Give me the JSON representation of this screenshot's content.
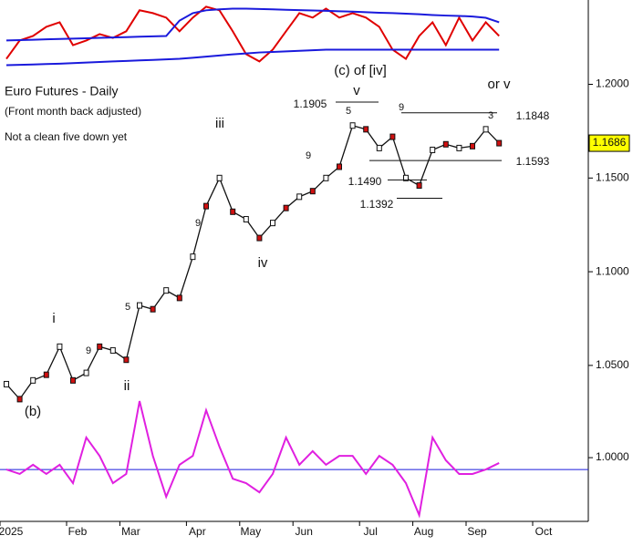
{
  "chart_data": [
    {
      "type": "line",
      "title": "Euro Futures - Daily",
      "subtitle": "(Front month back adjusted)",
      "categories": [
        "2025",
        null,
        null,
        null,
        null,
        "Feb",
        null,
        null,
        null,
        "Mar",
        null,
        null,
        null,
        null,
        "Apr",
        null,
        null,
        null,
        "May",
        null,
        null,
        null,
        "Jun",
        null,
        null,
        null,
        null,
        "Jul",
        null,
        null,
        null,
        "Aug",
        null,
        null,
        null,
        "Sep",
        null,
        null,
        null,
        null,
        "Oct",
        null,
        null,
        null
      ],
      "series": [
        {
          "name": "price",
          "color": "#111111",
          "values": [
            1.04,
            1.032,
            1.042,
            1.045,
            1.06,
            1.042,
            1.046,
            1.06,
            1.058,
            1.053,
            1.082,
            1.08,
            1.09,
            1.086,
            1.108,
            1.135,
            1.15,
            1.132,
            1.128,
            1.118,
            1.126,
            1.134,
            1.14,
            1.143,
            1.15,
            1.156,
            1.178,
            1.176,
            1.166,
            1.172,
            1.15,
            1.146,
            1.165,
            1.168,
            1.166,
            1.167,
            1.176,
            1.1686,
            null,
            null,
            null,
            null,
            null,
            null
          ]
        },
        {
          "name": "oscillator",
          "color": "#e00000",
          "values": [
            1.2136,
            1.2234,
            1.2258,
            1.2307,
            1.2331,
            1.2209,
            1.2234,
            1.2268,
            1.2248,
            1.2283,
            1.2395,
            1.238,
            1.2356,
            1.2283,
            1.2356,
            1.2414,
            1.2395,
            1.2283,
            1.2161,
            1.2122,
            1.2185,
            1.2283,
            1.238,
            1.2356,
            1.2404,
            1.2356,
            1.238,
            1.2356,
            1.2307,
            1.2185,
            1.2136,
            1.2258,
            1.2331,
            1.2209,
            1.2356,
            1.2234,
            1.2331,
            1.2258,
            null,
            null,
            null,
            null,
            null,
            null
          ]
        },
        {
          "name": "upper band",
          "color": "#1a1adc",
          "values": [
            1.2234,
            1.2236,
            1.2238,
            1.224,
            1.2242,
            1.2244,
            1.2246,
            1.2248,
            1.225,
            1.2252,
            1.2254,
            1.2256,
            1.2258,
            1.234,
            1.238,
            1.2395,
            1.24,
            1.2404,
            1.2404,
            1.2402,
            1.24,
            1.2398,
            1.2396,
            1.2394,
            1.2392,
            1.239,
            1.2388,
            1.2385,
            1.2382,
            1.238,
            1.2377,
            1.2374,
            1.237,
            1.2367,
            1.2365,
            1.2362,
            1.2355,
            1.2331,
            null,
            null,
            null,
            null,
            null,
            null
          ]
        },
        {
          "name": "lower band",
          "color": "#1a1adc",
          "values": [
            1.2102,
            1.2104,
            1.2106,
            1.2108,
            1.211,
            1.2113,
            1.2116,
            1.2119,
            1.2122,
            1.2125,
            1.2128,
            1.213,
            1.2133,
            1.2136,
            1.2142,
            1.2148,
            1.2154,
            1.216,
            1.2165,
            1.217,
            1.2173,
            1.2176,
            1.2179,
            1.2182,
            1.2185,
            1.2185,
            1.2185,
            1.2185,
            1.2185,
            1.2185,
            1.2185,
            1.2185,
            1.2185,
            1.2185,
            1.2185,
            1.2185,
            1.2185,
            1.2185,
            null,
            null,
            null,
            null,
            null,
            null
          ]
        }
      ],
      "ylim": [
        1.03,
        1.245
      ],
      "yticks": [
        {
          "value": 1.2,
          "label": "1.2000"
        },
        {
          "value": 1.15,
          "label": "1.1500"
        },
        {
          "value": 1.1,
          "label": "1.1000"
        },
        {
          "value": 1.05,
          "label": "1.0500"
        }
      ],
      "last_price": {
        "value": 1.1686,
        "label": "1.1686"
      },
      "levels": [
        {
          "value": 1.1905,
          "label": "1.1905"
        },
        {
          "value": 1.1848,
          "label": "1.1848"
        },
        {
          "value": 1.1593,
          "label": "1.1593"
        },
        {
          "value": 1.149,
          "label": "1.1490"
        },
        {
          "value": 1.1392,
          "label": "1.1392"
        }
      ],
      "annotations": [
        {
          "text": "Not a clean five down yet"
        },
        {
          "text": "(c) of [iv]"
        },
        {
          "text": "v"
        },
        {
          "text": "or v"
        },
        {
          "text": "iii"
        },
        {
          "text": "iv"
        },
        {
          "text": "i"
        },
        {
          "text": "ii"
        },
        {
          "text": "(b)"
        },
        {
          "text": "9"
        },
        {
          "text": "9"
        },
        {
          "text": "9"
        },
        {
          "text": "9"
        },
        {
          "text": "5"
        },
        {
          "text": "5"
        },
        {
          "text": "3"
        }
      ]
    },
    {
      "type": "line",
      "series": [
        {
          "name": "momentum",
          "color": "#e020e0",
          "values": [
            0.996,
            0.9945,
            0.9976,
            0.9945,
            0.9976,
            0.9914,
            1.0068,
            1.0006,
            0.9914,
            0.9945,
            1.0191,
            1.0006,
            0.9868,
            0.9976,
            1.0006,
            1.016,
            1.0037,
            0.9929,
            0.9914,
            0.9883,
            0.9945,
            1.0068,
            0.9976,
            1.0022,
            0.9976,
            1.0006,
            1.0006,
            0.9945,
            1.0006,
            0.9976,
            0.9914,
            0.9806,
            1.0068,
            0.9991,
            0.9945,
            0.9945,
            0.996,
            0.9982,
            null,
            null,
            null,
            null,
            null,
            null
          ]
        }
      ],
      "reference_line": {
        "value": 0.996,
        "color": "#1a1adc"
      },
      "ylim": [
        0.9791,
        1.0191
      ],
      "yticks": [
        {
          "value": 1.0,
          "label": "1.0000"
        }
      ]
    }
  ]
}
